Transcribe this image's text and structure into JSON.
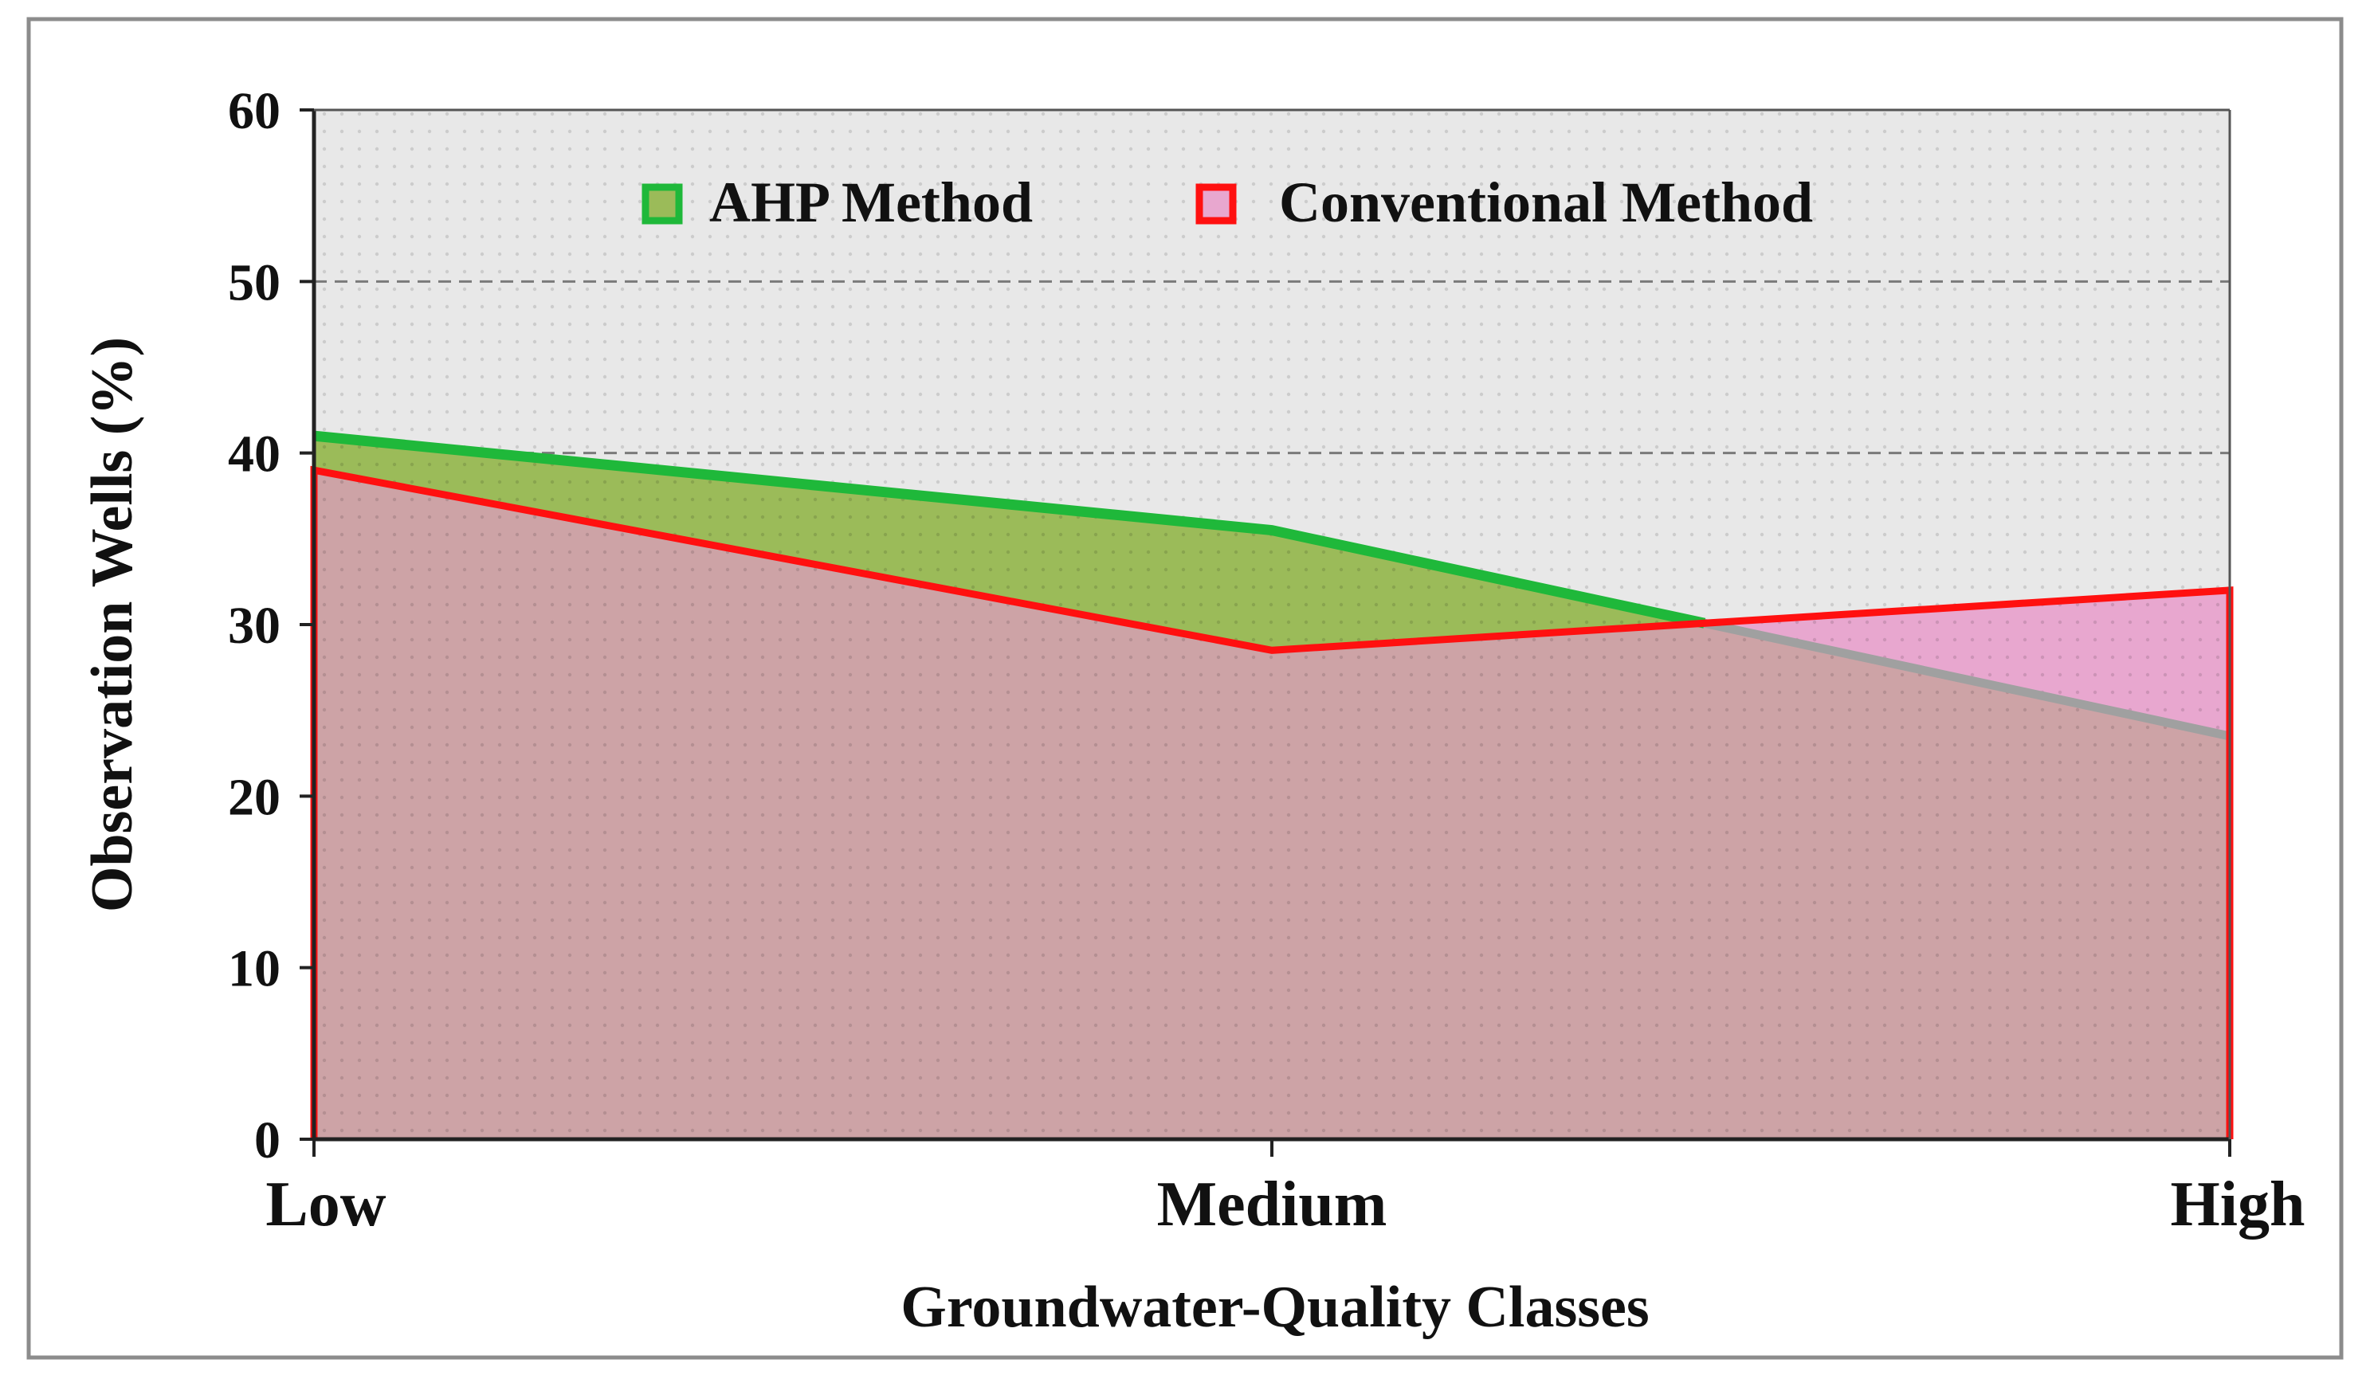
{
  "chart_data": {
    "type": "area",
    "title": "",
    "xlabel": "Groundwater-Quality Classes",
    "ylabel": "Observation Wells (%)",
    "categories": [
      "Low",
      "Medium",
      "High"
    ],
    "ylim": [
      0,
      60
    ],
    "yticks": [
      0,
      10,
      20,
      30,
      40,
      50,
      60
    ],
    "grid": "dashed horizontal at 40 and 50",
    "legend_placement": "top-center inside plot",
    "series": [
      {
        "name": "AHP Method",
        "values": [
          41,
          35.5,
          23.5
        ],
        "line_color": "#1fb83a",
        "fill_color": "#9bbb59"
      },
      {
        "name": "Conventional Method",
        "values": [
          39,
          28.5,
          32
        ],
        "line_color": "#ff1010",
        "fill_color": "#e8a7cf"
      }
    ],
    "colors": {
      "plot_background": "#e8e8e8",
      "overlap_fill": "#cda3a6",
      "ahp_tail_line": "#a0a0a0",
      "frame": "#8c8c8c"
    }
  }
}
